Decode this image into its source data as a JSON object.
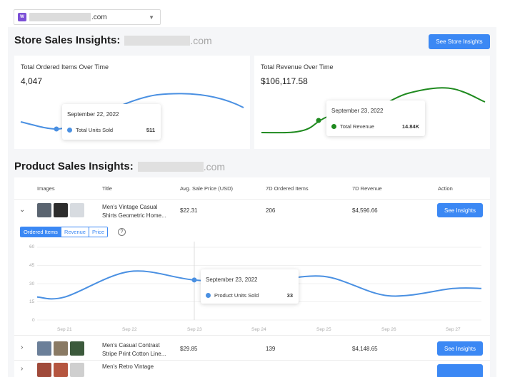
{
  "store_select": {
    "value": ".com",
    "logo_text": "W"
  },
  "store": {
    "title": "Store Sales Insights:",
    "domain_suffix": ".com",
    "button": "See Store Insights",
    "ordered": {
      "title": "Total Ordered Items Over Time",
      "value": "4,047",
      "tooltip_date": "September 22, 2022",
      "tooltip_label": "Total Units Sold",
      "tooltip_value": "511"
    },
    "revenue": {
      "title": "Total Revenue Over Time",
      "value": "$106,117.58",
      "tooltip_date": "September 23, 2022",
      "tooltip_label": "Total Revenue",
      "tooltip_value": "14.84K"
    }
  },
  "product": {
    "title": "Product Sales Insights:",
    "domain_suffix": ".com",
    "columns": [
      "Images",
      "Title",
      "Avg. Sale Price (USD)",
      "7D Ordered Items",
      "7D Revenue",
      "Action"
    ],
    "rows": [
      {
        "title_line1": "Men's Vintage Casual",
        "title_line2": "Shirts Geometric Home...",
        "price": "$22.31",
        "ordered": "206",
        "revenue": "$4,596.66",
        "action": "See Insights"
      },
      {
        "title_line1": "Men's Casual Contrast",
        "title_line2": "Stripe Print Cotton Line...",
        "price": "$29.85",
        "ordered": "139",
        "revenue": "$4,148.65",
        "action": "See Insights"
      },
      {
        "title_line1": "Men's Retro Vintage",
        "title_line2": "",
        "price": "",
        "ordered": "",
        "revenue": "",
        "action": ""
      }
    ],
    "tabs": [
      "Ordered Items",
      "Revenue",
      "Price"
    ],
    "tooltip_date": "September 23, 2022",
    "tooltip_label": "Product Units Sold",
    "tooltip_value": "33"
  },
  "colors": {
    "accent": "#3b88f4",
    "line_blue": "#4a90e2",
    "line_green": "#1f8a1f"
  },
  "chart_data": {
    "type": "line",
    "x": [
      "Sep 21",
      "Sep 22",
      "Sep 23",
      "Sep 24",
      "Sep 25",
      "Sep 26",
      "Sep 27"
    ],
    "series": [
      {
        "values": [
          19,
          40,
          33,
          31,
          36,
          20,
          26
        ]
      }
    ],
    "ylim": [
      0,
      60
    ],
    "yticks": [
      "60",
      "45",
      "30",
      "15",
      "0"
    ],
    "xlabel": "",
    "ylabel": "",
    "title": ""
  }
}
